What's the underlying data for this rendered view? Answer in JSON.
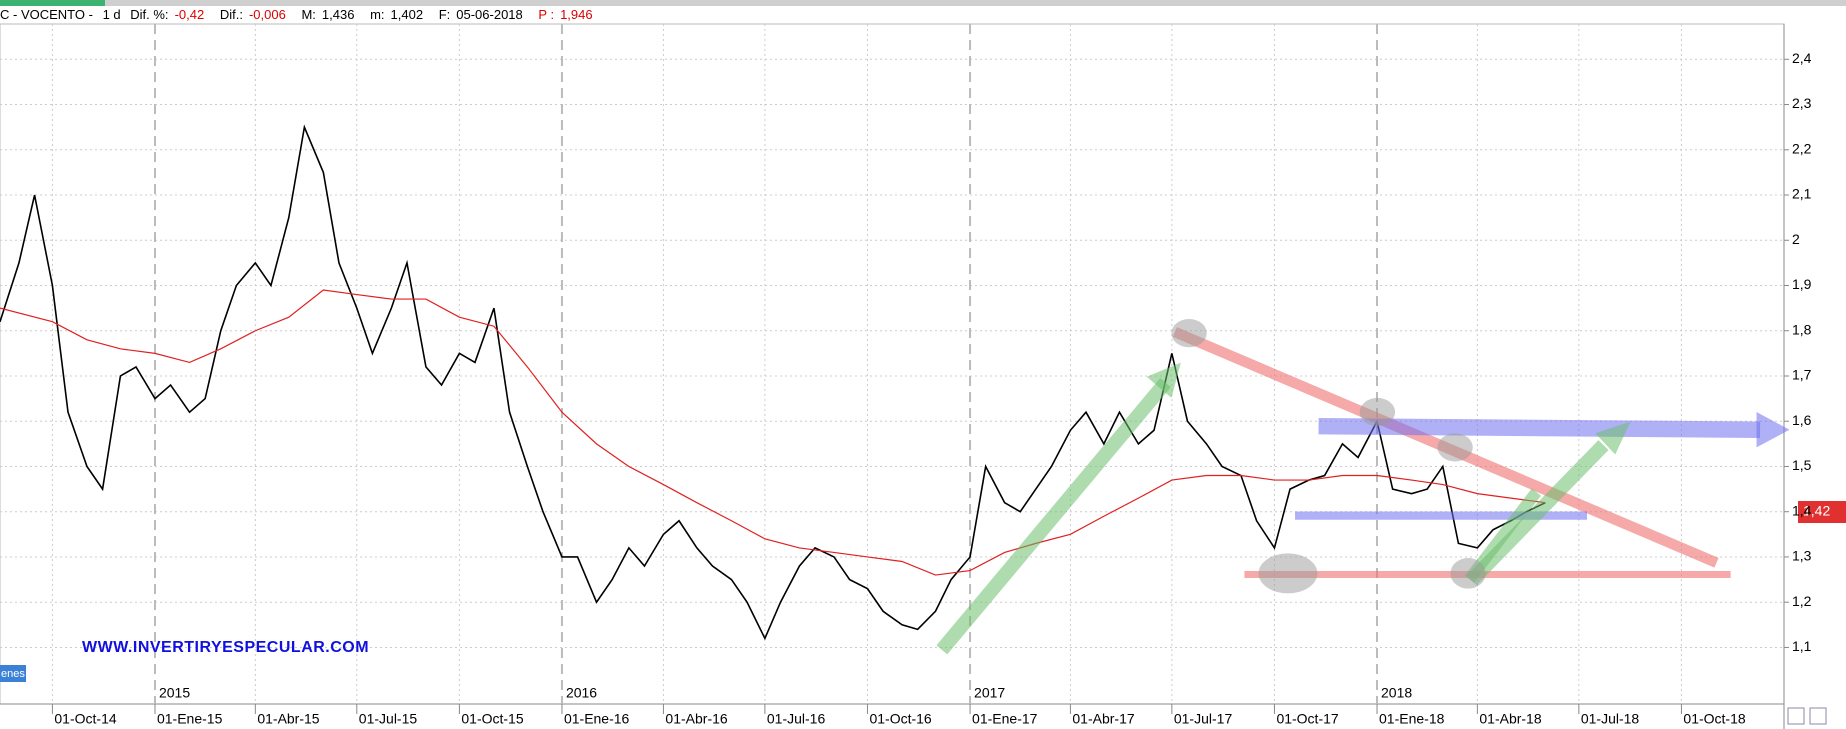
{
  "header": {
    "symbol": "C - VOCENTO -",
    "interval": "1 d",
    "items": [
      {
        "label": "Dif. %:",
        "value": "-0,42"
      },
      {
        "label": "Dif.:",
        "value": "-0,006"
      },
      {
        "label": "M:",
        "value": "1,436"
      },
      {
        "label": "m:",
        "value": "1,402"
      },
      {
        "label": "F:",
        "value": "05-06-2018"
      },
      {
        "label": "P :",
        "value": "1,946"
      }
    ]
  },
  "watermark": "WWW.INVERTIRYESPECULAR.COM",
  "side_tag": "enes",
  "price_tag": "1,42",
  "chart_data": {
    "type": "line",
    "xlim": [
      "2014-08-15",
      "2019-01-01"
    ],
    "ylim": [
      0.975,
      2.478
    ],
    "xticks": [
      {
        "value": "2014-10-01",
        "label": "01-Oct-14"
      },
      {
        "value": "2015-01-01",
        "label": "01-Ene-15"
      },
      {
        "value": "2015-04-01",
        "label": "01-Abr-15"
      },
      {
        "value": "2015-07-01",
        "label": "01-Jul-15"
      },
      {
        "value": "2015-10-01",
        "label": "01-Oct-15"
      },
      {
        "value": "2016-01-01",
        "label": "01-Ene-16"
      },
      {
        "value": "2016-04-01",
        "label": "01-Abr-16"
      },
      {
        "value": "2016-07-01",
        "label": "01-Jul-16"
      },
      {
        "value": "2016-10-01",
        "label": "01-Oct-16"
      },
      {
        "value": "2017-01-01",
        "label": "01-Ene-17"
      },
      {
        "value": "2017-04-01",
        "label": "01-Abr-17"
      },
      {
        "value": "2017-07-01",
        "label": "01-Jul-17"
      },
      {
        "value": "2017-10-01",
        "label": "01-Oct-17"
      },
      {
        "value": "2018-01-01",
        "label": "01-Ene-18"
      },
      {
        "value": "2018-04-01",
        "label": "01-Abr-18"
      },
      {
        "value": "2018-07-01",
        "label": "01-Jul-18"
      },
      {
        "value": "2018-10-01",
        "label": "01-Oct-18"
      }
    ],
    "year_labels": [
      {
        "value": "2015-01-01",
        "label": "2015"
      },
      {
        "value": "2016-01-01",
        "label": "2016"
      },
      {
        "value": "2017-01-01",
        "label": "2017"
      },
      {
        "value": "2018-01-01",
        "label": "2018"
      }
    ],
    "yticks": [
      {
        "value": 1.1,
        "label": "1,1"
      },
      {
        "value": 1.2,
        "label": "1,2"
      },
      {
        "value": 1.3,
        "label": "1,3"
      },
      {
        "value": 1.4,
        "label": "1,4"
      },
      {
        "value": 1.5,
        "label": "1,5"
      },
      {
        "value": 1.6,
        "label": "1,6"
      },
      {
        "value": 1.7,
        "label": "1,7"
      },
      {
        "value": 1.8,
        "label": "1,8"
      },
      {
        "value": 1.9,
        "label": "1,9"
      },
      2,
      {
        "value": 2.1,
        "label": "2,1"
      },
      {
        "value": 2.2,
        "label": "2,2"
      },
      {
        "value": 2.3,
        "label": "2,3"
      },
      {
        "value": 2.4,
        "label": "2,4"
      }
    ],
    "grid": true,
    "series": [
      {
        "name": "VOCENTO",
        "color": "#000000",
        "x": [
          "2014-08-15",
          "2014-09-01",
          "2014-09-15",
          "2014-10-01",
          "2014-10-15",
          "2014-11-01",
          "2014-11-15",
          "2014-12-01",
          "2014-12-15",
          "2015-01-01",
          "2015-01-15",
          "2015-02-01",
          "2015-02-15",
          "2015-03-01",
          "2015-03-15",
          "2015-04-01",
          "2015-04-15",
          "2015-05-01",
          "2015-05-15",
          "2015-06-01",
          "2015-06-15",
          "2015-07-01",
          "2015-07-15",
          "2015-08-01",
          "2015-08-15",
          "2015-09-01",
          "2015-09-15",
          "2015-10-01",
          "2015-10-15",
          "2015-11-01",
          "2015-11-15",
          "2015-12-01",
          "2015-12-15",
          "2016-01-01",
          "2016-01-15",
          "2016-02-01",
          "2016-02-15",
          "2016-03-01",
          "2016-03-15",
          "2016-04-01",
          "2016-04-15",
          "2016-05-01",
          "2016-05-15",
          "2016-06-01",
          "2016-06-15",
          "2016-07-01",
          "2016-07-15",
          "2016-08-01",
          "2016-08-15",
          "2016-09-01",
          "2016-09-15",
          "2016-10-01",
          "2016-10-15",
          "2016-11-01",
          "2016-11-15",
          "2016-12-01",
          "2016-12-15",
          "2017-01-01",
          "2017-01-15",
          "2017-02-01",
          "2017-02-15",
          "2017-03-01",
          "2017-03-15",
          "2017-04-01",
          "2017-04-15",
          "2017-05-01",
          "2017-05-15",
          "2017-06-01",
          "2017-06-15",
          "2017-07-01",
          "2017-07-15",
          "2017-08-01",
          "2017-08-15",
          "2017-09-01",
          "2017-09-15",
          "2017-10-01",
          "2017-10-15",
          "2017-11-01",
          "2017-11-15",
          "2017-12-01",
          "2017-12-15",
          "2018-01-01",
          "2018-01-15",
          "2018-02-01",
          "2018-02-15",
          "2018-03-01",
          "2018-03-15",
          "2018-04-01",
          "2018-04-15",
          "2018-05-01",
          "2018-05-15",
          "2018-06-01"
        ],
        "values": [
          1.82,
          1.95,
          2.1,
          1.9,
          1.62,
          1.5,
          1.45,
          1.7,
          1.72,
          1.65,
          1.68,
          1.62,
          1.65,
          1.8,
          1.9,
          1.95,
          1.9,
          2.05,
          2.25,
          2.15,
          1.95,
          1.85,
          1.75,
          1.85,
          1.95,
          1.72,
          1.68,
          1.75,
          1.73,
          1.85,
          1.62,
          1.5,
          1.4,
          1.3,
          1.3,
          1.2,
          1.25,
          1.32,
          1.28,
          1.35,
          1.38,
          1.32,
          1.28,
          1.25,
          1.2,
          1.12,
          1.2,
          1.28,
          1.32,
          1.3,
          1.25,
          1.23,
          1.18,
          1.15,
          1.14,
          1.18,
          1.25,
          1.3,
          1.5,
          1.42,
          1.4,
          1.45,
          1.5,
          1.58,
          1.62,
          1.55,
          1.62,
          1.55,
          1.58,
          1.75,
          1.6,
          1.55,
          1.5,
          1.48,
          1.38,
          1.32,
          1.45,
          1.47,
          1.48,
          1.55,
          1.52,
          1.6,
          1.45,
          1.44,
          1.45,
          1.5,
          1.33,
          1.32,
          1.36,
          1.38,
          1.4,
          1.42
        ]
      },
      {
        "name": "MA",
        "color": "#e02020",
        "x": [
          "2014-08-15",
          "2014-10-01",
          "2014-11-01",
          "2014-12-01",
          "2015-01-01",
          "2015-02-01",
          "2015-03-01",
          "2015-04-01",
          "2015-05-01",
          "2015-06-01",
          "2015-07-01",
          "2015-08-01",
          "2015-09-01",
          "2015-10-01",
          "2015-11-01",
          "2015-12-01",
          "2016-01-01",
          "2016-02-01",
          "2016-03-01",
          "2016-04-01",
          "2016-05-01",
          "2016-06-01",
          "2016-07-01",
          "2016-08-01",
          "2016-09-01",
          "2016-10-01",
          "2016-11-01",
          "2016-12-01",
          "2017-01-01",
          "2017-02-01",
          "2017-03-01",
          "2017-04-01",
          "2017-05-01",
          "2017-06-01",
          "2017-07-01",
          "2017-08-01",
          "2017-09-01",
          "2017-10-01",
          "2017-11-01",
          "2017-12-01",
          "2018-01-01",
          "2018-02-01",
          "2018-03-01",
          "2018-04-01",
          "2018-05-01",
          "2018-06-01"
        ],
        "values": [
          1.85,
          1.82,
          1.78,
          1.76,
          1.75,
          1.73,
          1.76,
          1.8,
          1.83,
          1.89,
          1.88,
          1.87,
          1.87,
          1.83,
          1.81,
          1.72,
          1.62,
          1.55,
          1.5,
          1.46,
          1.42,
          1.38,
          1.34,
          1.32,
          1.31,
          1.3,
          1.29,
          1.26,
          1.27,
          1.31,
          1.33,
          1.35,
          1.39,
          1.43,
          1.47,
          1.48,
          1.48,
          1.47,
          1.47,
          1.48,
          1.48,
          1.47,
          1.46,
          1.44,
          1.43,
          1.42
        ]
      }
    ]
  }
}
